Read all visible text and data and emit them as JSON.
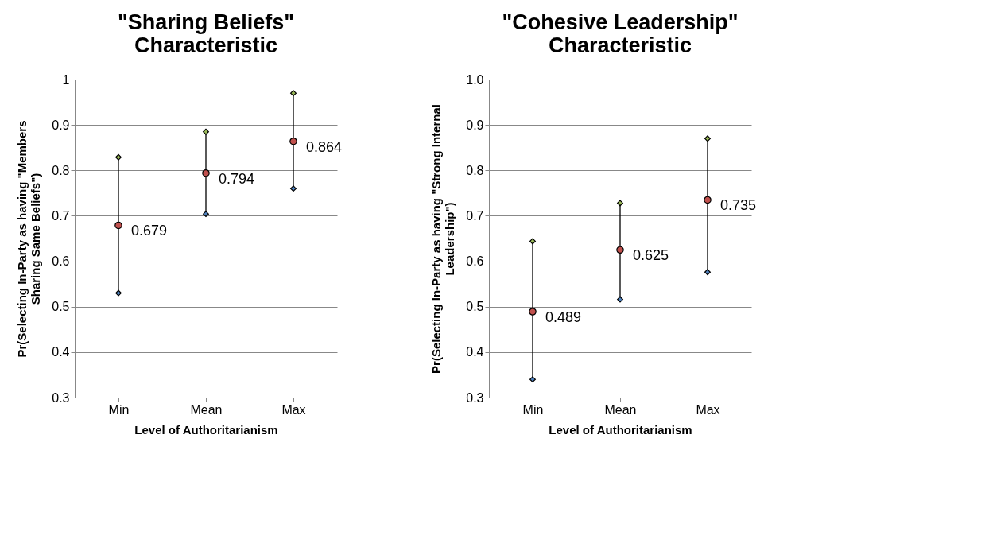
{
  "chart_data": [
    {
      "type": "scatter",
      "title": "\"Sharing Beliefs\"\nCharacteristic",
      "xlabel": "Level of Authoritarianism",
      "ylabel": "Pr(Selecting In-Party as having \"Members\nSharing Same Beliefs\")",
      "categories": [
        "Min",
        "Mean",
        "Max"
      ],
      "ylim": [
        0.3,
        1
      ],
      "yticks": [
        0.3,
        0.4,
        0.5,
        0.6,
        0.7,
        0.8,
        0.9,
        1
      ],
      "grid": "y",
      "legend": false,
      "series": [
        {
          "type": "line",
          "color": "#000000",
          "x": [
            "Min",
            "Min"
          ],
          "values": [
            0.53,
            0.829
          ]
        },
        {
          "type": "line",
          "color": "#000000",
          "x": [
            "Mean",
            "Mean"
          ],
          "values": [
            0.704,
            0.885
          ]
        },
        {
          "type": "line",
          "color": "#000000",
          "x": [
            "Max",
            "Max"
          ],
          "values": [
            0.76,
            0.97
          ]
        },
        {
          "color": "#9bbb59",
          "marker": "diamond",
          "values": [
            0.829,
            0.885,
            0.97
          ]
        },
        {
          "color": "#c0504d",
          "marker": "circle",
          "values": [
            0.679,
            0.794,
            0.864
          ],
          "value_labels": [
            "0.679",
            "0.794",
            "0.864"
          ]
        },
        {
          "color": "#4f81bd",
          "marker": "diamond",
          "values": [
            0.53,
            0.704,
            0.76
          ]
        }
      ]
    },
    {
      "type": "scatter",
      "title": "\"Cohesive Leadership\"\nCharacteristic",
      "xlabel": "Level of Authoritarianism",
      "ylabel": "Pr(Selecting In-Party as having \"Strong Internal\nLeadership\")",
      "categories": [
        "Min",
        "Mean",
        "Max"
      ],
      "ylim": [
        0.3,
        1
      ],
      "yticks": [
        {
          "value": 0.3,
          "label": "0.3"
        },
        {
          "value": 0.4,
          "label": "0.4"
        },
        {
          "value": 0.5,
          "label": "0.5"
        },
        {
          "value": 0.6,
          "label": "0.6"
        },
        {
          "value": 0.7,
          "label": "0.7"
        },
        {
          "value": 0.8,
          "label": "0.8"
        },
        {
          "value": 0.9,
          "label": "0.9"
        },
        {
          "value": 1,
          "label": "1.0"
        }
      ],
      "grid": "y",
      "legend": false,
      "series": [
        {
          "type": "line",
          "color": "#000000",
          "x": [
            "Min",
            "Min"
          ],
          "values": [
            0.34,
            0.644
          ]
        },
        {
          "type": "line",
          "color": "#000000",
          "x": [
            "Mean",
            "Mean"
          ],
          "values": [
            0.516,
            0.728
          ]
        },
        {
          "type": "line",
          "color": "#000000",
          "x": [
            "Max",
            "Max"
          ],
          "values": [
            0.576,
            0.87
          ]
        },
        {
          "color": "#9bbb59",
          "marker": "diamond",
          "values": [
            0.644,
            0.728,
            0.87
          ]
        },
        {
          "color": "#c0504d",
          "marker": "circle",
          "values": [
            0.489,
            0.625,
            0.735
          ],
          "value_labels": [
            "0.489",
            "0.625",
            "0.735"
          ]
        },
        {
          "color": "#4f81bd",
          "marker": "diamond",
          "values": [
            0.34,
            0.516,
            0.576
          ]
        }
      ]
    }
  ]
}
